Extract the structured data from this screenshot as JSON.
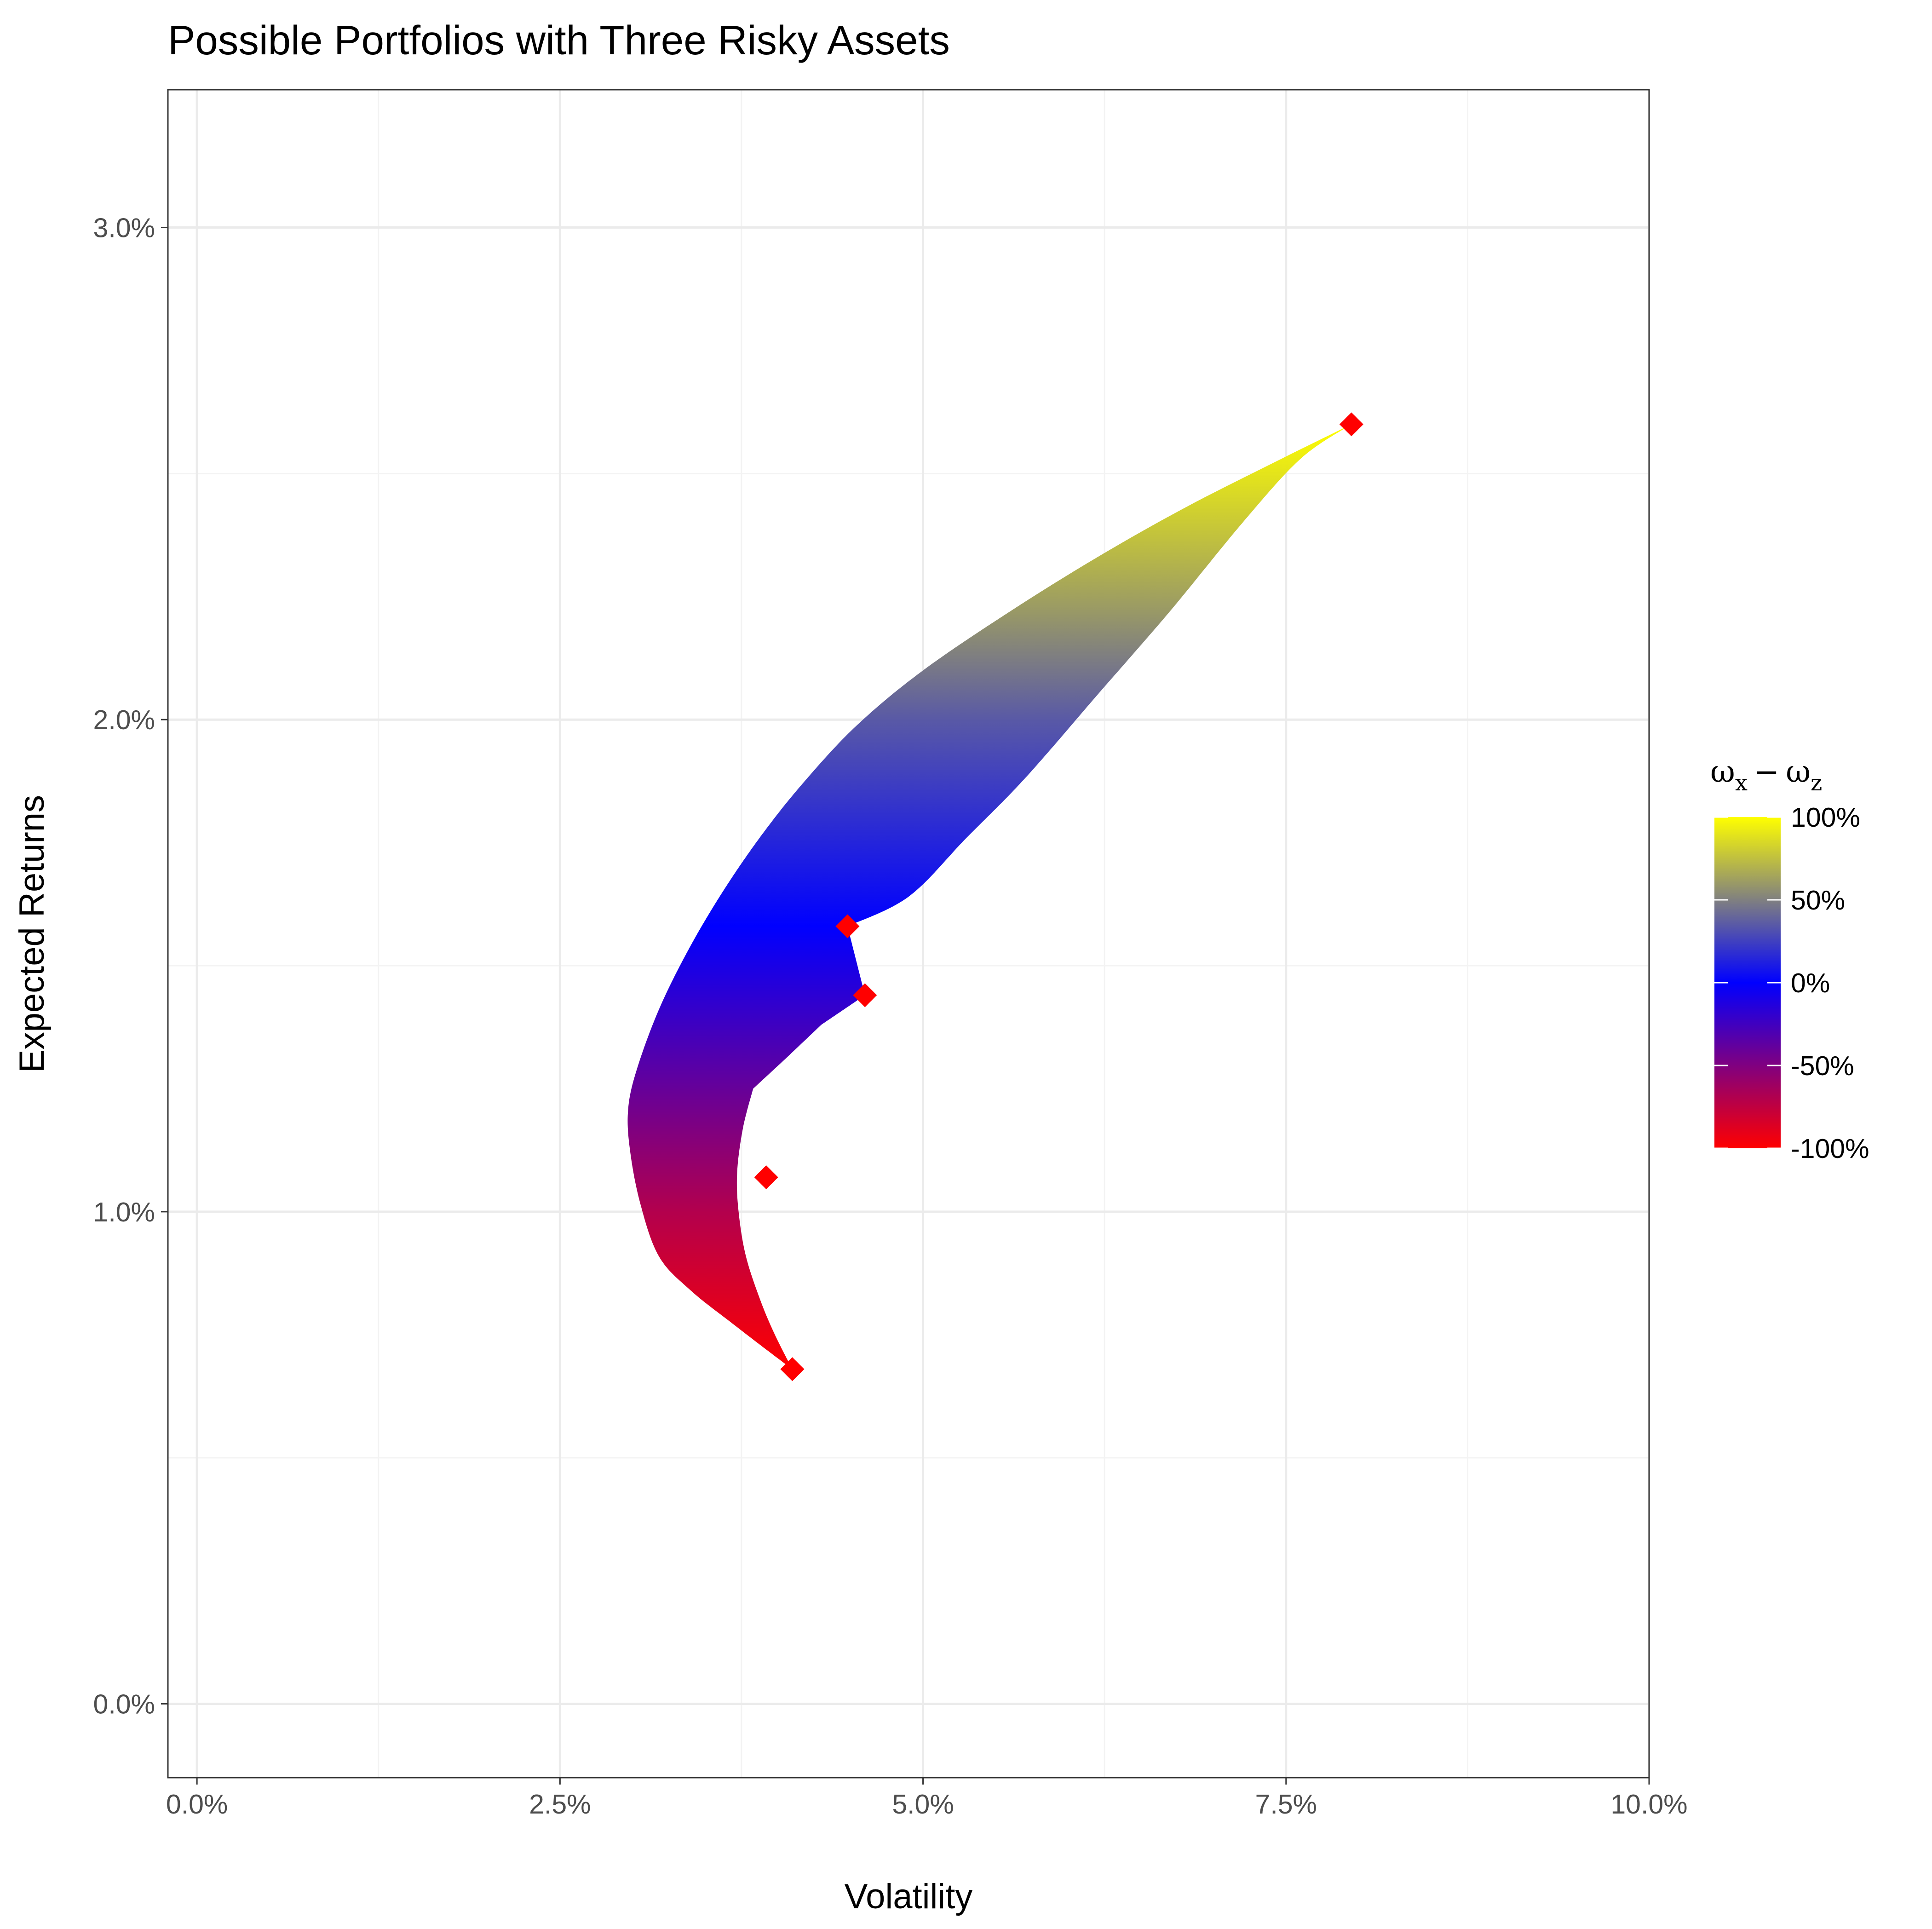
{
  "chart_data": {
    "type": "scatter",
    "title": "Possible Portfolios with Three Risky Assets",
    "xlabel": "Volatility",
    "ylabel": "Expected Returns",
    "xlim": [
      -0.002,
      0.1
    ],
    "ylim": [
      -0.0015,
      0.0328
    ],
    "x_ticks": [
      0,
      0.025,
      0.05,
      0.075,
      0.1
    ],
    "x_tick_labels": [
      "0.0%",
      "2.5%",
      "5.0%",
      "7.5%",
      "10.0%"
    ],
    "y_ticks": [
      0,
      0.01,
      0.02,
      0.03
    ],
    "y_tick_labels": [
      "0.0%",
      "1.0%",
      "2.0%",
      "3.0%"
    ],
    "grid": true,
    "legend": {
      "title_main": "ω",
      "title_sub1": "x",
      "title_op": "−",
      "title_sub2": "z",
      "position": "right",
      "labels": [
        "100%",
        "50%",
        "0%",
        "-50%",
        "-100%"
      ],
      "values": [
        1,
        0.5,
        0,
        -0.5,
        -1
      ],
      "colors": [
        "#ffff00",
        "#0000ff",
        "#ff0000"
      ]
    },
    "asset_points": [
      {
        "x": 0.0795,
        "y": 0.026
      },
      {
        "x": 0.0448,
        "y": 0.0158
      },
      {
        "x": 0.046,
        "y": 0.0144
      },
      {
        "x": 0.0392,
        "y": 0.0107
      },
      {
        "x": 0.041,
        "y": 0.0068
      }
    ],
    "point_color": "#ff0000",
    "frontier": {
      "boundary_min_volatility": [
        {
          "x": 0.0795,
          "y": 0.026
        },
        {
          "x": 0.074,
          "y": 0.0252
        },
        {
          "x": 0.068,
          "y": 0.0243
        },
        {
          "x": 0.062,
          "y": 0.0233
        },
        {
          "x": 0.056,
          "y": 0.0222
        },
        {
          "x": 0.05,
          "y": 0.021
        },
        {
          "x": 0.0455,
          "y": 0.0199
        },
        {
          "x": 0.042,
          "y": 0.0188
        },
        {
          "x": 0.039,
          "y": 0.0177
        },
        {
          "x": 0.0362,
          "y": 0.0165
        },
        {
          "x": 0.0338,
          "y": 0.0153
        },
        {
          "x": 0.0318,
          "y": 0.0141
        },
        {
          "x": 0.0303,
          "y": 0.0129
        },
        {
          "x": 0.0297,
          "y": 0.0121
        },
        {
          "x": 0.0298,
          "y": 0.0113
        },
        {
          "x": 0.0305,
          "y": 0.0102
        },
        {
          "x": 0.0318,
          "y": 0.0091
        },
        {
          "x": 0.034,
          "y": 0.0084
        },
        {
          "x": 0.037,
          "y": 0.0077
        },
        {
          "x": 0.0392,
          "y": 0.0072
        },
        {
          "x": 0.041,
          "y": 0.0068
        }
      ],
      "boundary_upper_right": [
        {
          "x": 0.0795,
          "y": 0.026
        },
        {
          "x": 0.076,
          "y": 0.0253
        },
        {
          "x": 0.072,
          "y": 0.024
        },
        {
          "x": 0.067,
          "y": 0.0222
        },
        {
          "x": 0.062,
          "y": 0.0205
        },
        {
          "x": 0.057,
          "y": 0.0188
        },
        {
          "x": 0.053,
          "y": 0.0176
        },
        {
          "x": 0.049,
          "y": 0.0164
        },
        {
          "x": 0.0448,
          "y": 0.0158
        }
      ],
      "inner_edge": [
        {
          "x": 0.0448,
          "y": 0.0158
        },
        {
          "x": 0.046,
          "y": 0.0144
        },
        {
          "x": 0.043,
          "y": 0.0138
        },
        {
          "x": 0.0405,
          "y": 0.0131
        },
        {
          "x": 0.0383,
          "y": 0.0125
        }
      ],
      "boundary_lower_right": [
        {
          "x": 0.0383,
          "y": 0.0125
        },
        {
          "x": 0.0376,
          "y": 0.0117
        },
        {
          "x": 0.0372,
          "y": 0.0108
        },
        {
          "x": 0.0373,
          "y": 0.01
        },
        {
          "x": 0.0378,
          "y": 0.0091
        },
        {
          "x": 0.0388,
          "y": 0.0082
        },
        {
          "x": 0.0398,
          "y": 0.0075
        },
        {
          "x": 0.041,
          "y": 0.0068
        }
      ],
      "color_stops": [
        {
          "y": 0.026,
          "value": 1.0
        },
        {
          "y": 0.0222,
          "value": 0.6
        },
        {
          "y": 0.02,
          "value": 0.35
        },
        {
          "y": 0.0158,
          "value": 0.0
        },
        {
          "y": 0.0125,
          "value": -0.4
        },
        {
          "y": 0.01,
          "value": -0.7
        },
        {
          "y": 0.0068,
          "value": -1.0
        }
      ]
    }
  }
}
